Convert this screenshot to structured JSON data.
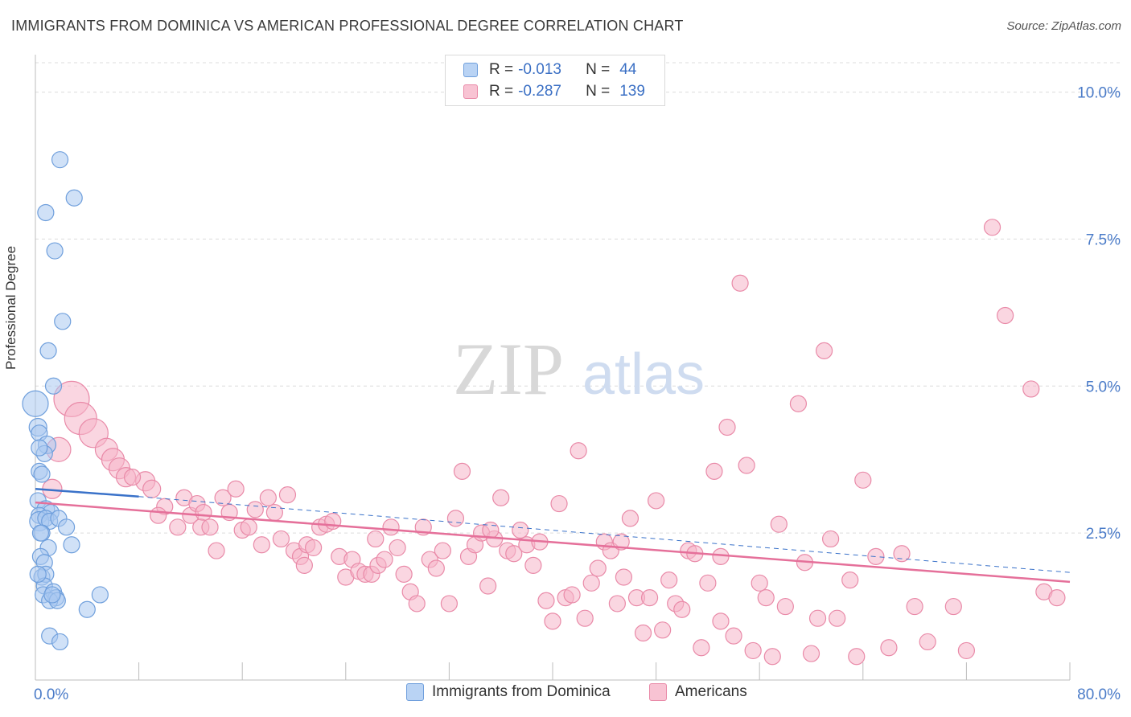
{
  "title": "IMMIGRANTS FROM DOMINICA VS AMERICAN PROFESSIONAL DEGREE CORRELATION CHART",
  "source": "Source: ZipAtlas.com",
  "watermark": {
    "zip": "ZIP",
    "atlas": "atlas"
  },
  "legend": {
    "rows": [
      {
        "r_label": "R =",
        "r_value": "-0.013",
        "n_label": "N =",
        "n_value": "44"
      },
      {
        "r_label": "R =",
        "r_value": "-0.287",
        "n_label": "N =",
        "n_value": "139"
      }
    ]
  },
  "bottom_legend": [
    "Immigrants from Dominica",
    "Americans"
  ],
  "colors": {
    "blue_fill": "#a9c8f0",
    "blue_stroke": "#6f9fdc",
    "blue_line": "#3a72c9",
    "pink_fill": "#f5b5c9",
    "pink_stroke": "#e98aa8",
    "pink_line": "#e5709a",
    "axis_text": "#4a7bc8"
  },
  "chart_data": {
    "type": "scatter",
    "title": "IMMIGRANTS FROM DOMINICA VS AMERICAN PROFESSIONAL DEGREE CORRELATION CHART",
    "xlabel": "",
    "ylabel": "Professional Degree",
    "xlim": [
      0,
      80
    ],
    "ylim": [
      0,
      10.5
    ],
    "x_tick_labels": [
      "0.0%",
      "80.0%"
    ],
    "y_ticks": [
      2.5,
      5.0,
      7.5,
      10.0
    ],
    "y_tick_labels": [
      "2.5%",
      "5.0%",
      "7.5%",
      "10.0%"
    ],
    "grid": true,
    "series": [
      {
        "name": "Immigrants from Dominica",
        "r": -0.013,
        "n": 44,
        "trend": {
          "x": [
            0,
            8
          ],
          "y": [
            3.25,
            3.12
          ]
        },
        "points": [
          [
            1.9,
            8.85,
            10
          ],
          [
            3.0,
            8.2,
            10
          ],
          [
            0.8,
            7.95,
            10
          ],
          [
            1.5,
            7.3,
            10
          ],
          [
            2.1,
            6.1,
            10
          ],
          [
            1.0,
            5.6,
            10
          ],
          [
            1.4,
            5.0,
            10
          ],
          [
            0.0,
            4.7,
            16
          ],
          [
            0.2,
            4.3,
            11
          ],
          [
            0.3,
            4.2,
            10
          ],
          [
            0.9,
            4.0,
            11
          ],
          [
            0.7,
            3.85,
            10
          ],
          [
            0.3,
            3.95,
            10
          ],
          [
            0.3,
            3.55,
            10
          ],
          [
            0.5,
            3.5,
            10
          ],
          [
            0.2,
            3.05,
            10
          ],
          [
            0.8,
            2.9,
            11
          ],
          [
            1.2,
            2.85,
            10
          ],
          [
            0.3,
            2.8,
            10
          ],
          [
            0.3,
            2.7,
            12
          ],
          [
            0.8,
            2.75,
            10
          ],
          [
            1.1,
            2.7,
            10
          ],
          [
            1.8,
            2.75,
            10
          ],
          [
            0.5,
            2.5,
            10
          ],
          [
            2.4,
            2.6,
            10
          ],
          [
            1.0,
            2.25,
            10
          ],
          [
            2.8,
            2.3,
            10
          ],
          [
            0.4,
            2.1,
            10
          ],
          [
            0.7,
            2.0,
            10
          ],
          [
            0.5,
            1.75,
            10
          ],
          [
            0.8,
            1.8,
            10
          ],
          [
            0.7,
            1.6,
            10
          ],
          [
            0.6,
            1.45,
            10
          ],
          [
            1.4,
            1.5,
            10
          ],
          [
            1.6,
            1.4,
            10
          ],
          [
            1.1,
            1.35,
            10
          ],
          [
            1.7,
            1.35,
            10
          ],
          [
            5.0,
            1.45,
            10
          ],
          [
            4.0,
            1.2,
            10
          ],
          [
            1.1,
            0.75,
            10
          ],
          [
            1.9,
            0.65,
            10
          ],
          [
            0.4,
            2.5,
            10
          ],
          [
            1.3,
            1.45,
            10
          ],
          [
            0.2,
            1.8,
            10
          ]
        ]
      },
      {
        "name": "Americans",
        "r": -0.287,
        "n": 139,
        "trend": {
          "x": [
            0,
            80
          ],
          "y": [
            3.02,
            1.67
          ]
        },
        "trend_dashed": {
          "x": [
            8,
            80
          ],
          "y": [
            3.12,
            1.83
          ]
        },
        "points": [
          [
            2.8,
            4.78,
            22
          ],
          [
            3.5,
            4.45,
            20
          ],
          [
            4.5,
            4.2,
            18
          ],
          [
            1.8,
            3.92,
            15
          ],
          [
            5.5,
            3.92,
            14
          ],
          [
            6.0,
            3.75,
            14
          ],
          [
            6.5,
            3.6,
            13
          ],
          [
            7.0,
            3.45,
            12
          ],
          [
            8.5,
            3.38,
            12
          ],
          [
            9.0,
            3.25,
            11
          ],
          [
            7.5,
            3.45,
            10
          ],
          [
            1.3,
            3.25,
            12
          ],
          [
            10.0,
            2.95,
            10
          ],
          [
            9.5,
            2.8,
            10
          ],
          [
            11.0,
            2.6,
            10
          ],
          [
            11.5,
            3.1,
            10
          ],
          [
            12.0,
            2.8,
            10
          ],
          [
            12.5,
            3.0,
            10
          ],
          [
            13.0,
            2.85,
            10
          ],
          [
            12.8,
            2.6,
            10
          ],
          [
            13.5,
            2.6,
            10
          ],
          [
            14.0,
            2.2,
            10
          ],
          [
            14.5,
            3.1,
            10
          ],
          [
            15.0,
            2.85,
            10
          ],
          [
            15.5,
            3.25,
            10
          ],
          [
            16.0,
            2.55,
            10
          ],
          [
            16.5,
            2.6,
            10
          ],
          [
            17.0,
            2.9,
            10
          ],
          [
            17.5,
            2.3,
            10
          ],
          [
            18.0,
            3.1,
            10
          ],
          [
            18.5,
            2.85,
            10
          ],
          [
            19.0,
            2.4,
            10
          ],
          [
            19.5,
            3.15,
            10
          ],
          [
            20.0,
            2.2,
            10
          ],
          [
            20.5,
            2.1,
            10
          ],
          [
            21.0,
            2.3,
            10
          ],
          [
            21.5,
            2.25,
            10
          ],
          [
            22.0,
            2.6,
            10
          ],
          [
            22.5,
            2.65,
            10
          ],
          [
            23.0,
            2.7,
            10
          ],
          [
            23.5,
            2.1,
            10
          ],
          [
            24.0,
            1.75,
            10
          ],
          [
            24.5,
            2.05,
            10
          ],
          [
            25.0,
            1.85,
            10
          ],
          [
            25.5,
            1.8,
            10
          ],
          [
            26.0,
            1.8,
            10
          ],
          [
            26.5,
            1.95,
            10
          ],
          [
            27.0,
            2.05,
            10
          ],
          [
            27.5,
            2.6,
            10
          ],
          [
            28.0,
            2.25,
            10
          ],
          [
            28.5,
            1.8,
            10
          ],
          [
            29.0,
            1.5,
            10
          ],
          [
            29.5,
            1.3,
            10
          ],
          [
            30.0,
            2.6,
            10
          ],
          [
            30.5,
            2.05,
            10
          ],
          [
            31.0,
            1.9,
            10
          ],
          [
            31.5,
            2.2,
            10
          ],
          [
            32.0,
            1.3,
            10
          ],
          [
            32.5,
            2.75,
            10
          ],
          [
            33.0,
            3.55,
            10
          ],
          [
            33.5,
            2.1,
            10
          ],
          [
            34.0,
            2.3,
            10
          ],
          [
            34.5,
            2.5,
            10
          ],
          [
            35.0,
            1.6,
            10
          ],
          [
            35.5,
            2.4,
            10
          ],
          [
            36.0,
            3.1,
            10
          ],
          [
            36.5,
            2.2,
            10
          ],
          [
            37.0,
            2.15,
            10
          ],
          [
            37.5,
            2.55,
            10
          ],
          [
            38.0,
            2.3,
            10
          ],
          [
            38.5,
            1.95,
            10
          ],
          [
            39.0,
            2.35,
            10
          ],
          [
            39.5,
            1.35,
            10
          ],
          [
            40.0,
            1.0,
            10
          ],
          [
            40.5,
            3.0,
            10
          ],
          [
            41.0,
            1.4,
            10
          ],
          [
            41.5,
            1.45,
            10
          ],
          [
            42.0,
            3.9,
            10
          ],
          [
            42.5,
            1.05,
            10
          ],
          [
            43.0,
            1.65,
            10
          ],
          [
            43.5,
            1.9,
            10
          ],
          [
            44.0,
            2.35,
            10
          ],
          [
            44.5,
            2.2,
            10
          ],
          [
            45.0,
            1.3,
            10
          ],
          [
            45.5,
            1.75,
            10
          ],
          [
            46.0,
            2.75,
            10
          ],
          [
            46.5,
            1.4,
            10
          ],
          [
            47.0,
            0.8,
            10
          ],
          [
            47.5,
            1.4,
            10
          ],
          [
            48.0,
            3.05,
            10
          ],
          [
            48.5,
            0.85,
            10
          ],
          [
            49.0,
            1.7,
            10
          ],
          [
            49.5,
            1.3,
            10
          ],
          [
            50.0,
            1.2,
            10
          ],
          [
            50.5,
            2.2,
            10
          ],
          [
            51.0,
            2.15,
            10
          ],
          [
            51.5,
            0.55,
            10
          ],
          [
            52.0,
            1.65,
            10
          ],
          [
            52.5,
            3.55,
            10
          ],
          [
            53.0,
            1.0,
            10
          ],
          [
            53.5,
            4.3,
            10
          ],
          [
            54.0,
            0.75,
            10
          ],
          [
            54.5,
            6.75,
            10
          ],
          [
            55.0,
            3.65,
            10
          ],
          [
            55.5,
            0.5,
            10
          ],
          [
            56.0,
            1.65,
            10
          ],
          [
            56.5,
            1.4,
            10
          ],
          [
            57.0,
            0.4,
            10
          ],
          [
            57.5,
            2.65,
            10
          ],
          [
            58.0,
            1.25,
            10
          ],
          [
            59.0,
            4.7,
            10
          ],
          [
            59.5,
            2.0,
            10
          ],
          [
            60.0,
            0.45,
            10
          ],
          [
            60.5,
            1.05,
            10
          ],
          [
            61.0,
            5.6,
            10
          ],
          [
            61.5,
            2.4,
            10
          ],
          [
            62.0,
            1.05,
            10
          ],
          [
            63.0,
            1.7,
            10
          ],
          [
            63.5,
            0.4,
            10
          ],
          [
            64.0,
            3.4,
            10
          ],
          [
            65.0,
            2.1,
            10
          ],
          [
            66.0,
            0.55,
            10
          ],
          [
            67.0,
            2.15,
            10
          ],
          [
            68.0,
            1.25,
            10
          ],
          [
            69.0,
            0.65,
            10
          ],
          [
            71.0,
            1.25,
            10
          ],
          [
            72.0,
            0.5,
            10
          ],
          [
            74.0,
            7.7,
            10
          ],
          [
            75.0,
            6.2,
            10
          ],
          [
            77.0,
            4.95,
            10
          ],
          [
            78.0,
            1.5,
            10
          ],
          [
            79.0,
            1.4,
            10
          ],
          [
            20.8,
            1.95,
            10
          ],
          [
            26.3,
            2.4,
            10
          ],
          [
            35.2,
            2.55,
            10
          ],
          [
            45.3,
            2.35,
            10
          ],
          [
            53.0,
            2.1,
            10
          ]
        ]
      }
    ]
  }
}
